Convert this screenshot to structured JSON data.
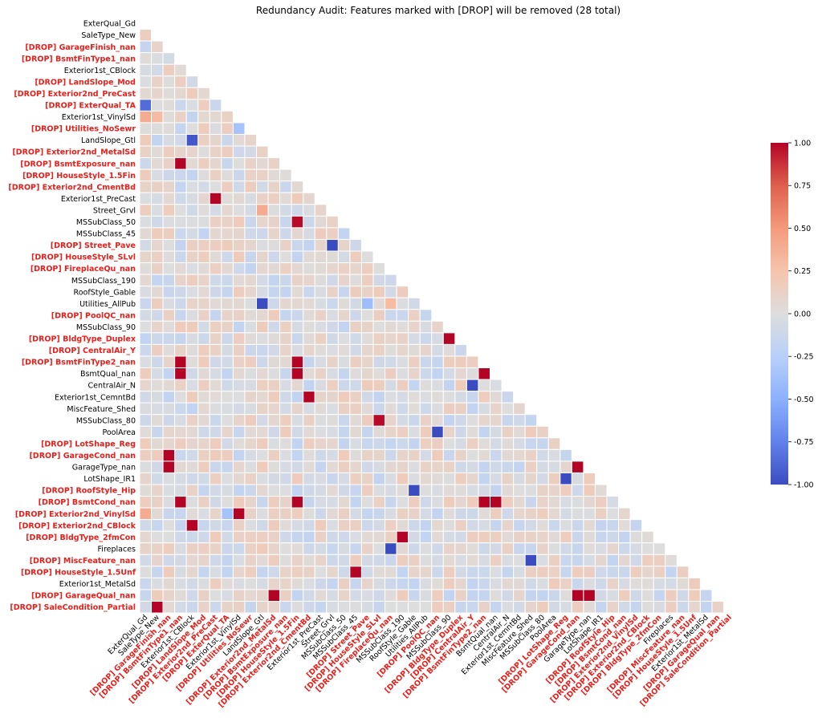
{
  "chart_data": {
    "type": "heatmap",
    "title": "Redundancy Audit: Features marked with [DROP] will be removed (28 total)",
    "drop_color": "#e8201c",
    "labels": [
      {
        "name": "ExterQual_Gd",
        "drop": false
      },
      {
        "name": "SaleType_New",
        "drop": false
      },
      {
        "name": "[DROP] GarageFinish_nan",
        "drop": true
      },
      {
        "name": "[DROP] BsmtFinType1_nan",
        "drop": true
      },
      {
        "name": "Exterior1st_CBlock",
        "drop": false
      },
      {
        "name": "[DROP] LandSlope_Mod",
        "drop": true
      },
      {
        "name": "[DROP] Exterior2nd_PreCast",
        "drop": true
      },
      {
        "name": "[DROP] ExterQual_TA",
        "drop": true
      },
      {
        "name": "Exterior1st_VinylSd",
        "drop": false
      },
      {
        "name": "[DROP] Utilities_NoSewr",
        "drop": true
      },
      {
        "name": "LandSlope_Gtl",
        "drop": false
      },
      {
        "name": "[DROP] Exterior2nd_MetalSd",
        "drop": true
      },
      {
        "name": "[DROP] BsmtExposure_nan",
        "drop": true
      },
      {
        "name": "[DROP] HouseStyle_1.5Fin",
        "drop": true
      },
      {
        "name": "[DROP] Exterior2nd_CmentBd",
        "drop": true
      },
      {
        "name": "Exterior1st_PreCast",
        "drop": false
      },
      {
        "name": "Street_Grvl",
        "drop": false
      },
      {
        "name": "MSSubClass_50",
        "drop": false
      },
      {
        "name": "MSSubClass_45",
        "drop": false
      },
      {
        "name": "[DROP] Street_Pave",
        "drop": true
      },
      {
        "name": "[DROP] HouseStyle_SLvl",
        "drop": true
      },
      {
        "name": "[DROP] FireplaceQu_nan",
        "drop": true
      },
      {
        "name": "MSSubClass_190",
        "drop": false
      },
      {
        "name": "RoofStyle_Gable",
        "drop": false
      },
      {
        "name": "Utilities_AllPub",
        "drop": false
      },
      {
        "name": "[DROP] PoolQC_nan",
        "drop": true
      },
      {
        "name": "MSSubClass_90",
        "drop": false
      },
      {
        "name": "[DROP] BldgType_Duplex",
        "drop": true
      },
      {
        "name": "[DROP] CentralAir_Y",
        "drop": true
      },
      {
        "name": "[DROP] BsmtFinType2_nan",
        "drop": true
      },
      {
        "name": "BsmtQual_nan",
        "drop": false
      },
      {
        "name": "CentralAir_N",
        "drop": false
      },
      {
        "name": "Exterior1st_CemntBd",
        "drop": false
      },
      {
        "name": "MiscFeature_Shed",
        "drop": false
      },
      {
        "name": "MSSubClass_80",
        "drop": false
      },
      {
        "name": "PoolArea",
        "drop": false
      },
      {
        "name": "[DROP] LotShape_Reg",
        "drop": true
      },
      {
        "name": "[DROP] GarageCond_nan",
        "drop": true
      },
      {
        "name": "GarageType_nan",
        "drop": false
      },
      {
        "name": "LotShape_IR1",
        "drop": false
      },
      {
        "name": "[DROP] RoofStyle_Hip",
        "drop": true
      },
      {
        "name": "[DROP] BsmtCond_nan",
        "drop": true
      },
      {
        "name": "[DROP] Exterior2nd_VinylSd",
        "drop": true
      },
      {
        "name": "[DROP] Exterior2nd_CBlock",
        "drop": true
      },
      {
        "name": "[DROP] BldgType_2fmCon",
        "drop": true
      },
      {
        "name": "Fireplaces",
        "drop": false
      },
      {
        "name": "[DROP] MiscFeature_nan",
        "drop": true
      },
      {
        "name": "[DROP] HouseStyle_1.5Unf",
        "drop": true
      },
      {
        "name": "Exterior1st_MetalSd",
        "drop": false
      },
      {
        "name": "[DROP] GarageQual_nan",
        "drop": true
      },
      {
        "name": "[DROP] SaleCondition_Partial",
        "drop": true
      }
    ],
    "strong_correlations": [
      [
        2,
        1,
        0.1
      ],
      [
        7,
        0,
        -0.85
      ],
      [
        8,
        0,
        0.4
      ],
      [
        8,
        1,
        0.3
      ],
      [
        9,
        8,
        -0.35
      ],
      [
        10,
        4,
        -0.95
      ],
      [
        12,
        3,
        1.0
      ],
      [
        15,
        6,
        1.0
      ],
      [
        16,
        10,
        0.4
      ],
      [
        17,
        13,
        0.98
      ],
      [
        19,
        16,
        -1.0
      ],
      [
        24,
        10,
        -1.0
      ],
      [
        24,
        19,
        -0.4
      ],
      [
        24,
        21,
        0.3
      ],
      [
        27,
        26,
        1.0
      ],
      [
        29,
        3,
        1.0
      ],
      [
        29,
        13,
        1.0
      ],
      [
        30,
        3,
        1.0
      ],
      [
        30,
        13,
        1.0
      ],
      [
        30,
        29,
        1.0
      ],
      [
        31,
        28,
        -1.0
      ],
      [
        32,
        14,
        1.0
      ],
      [
        34,
        20,
        0.98
      ],
      [
        35,
        25,
        -1.0
      ],
      [
        37,
        2,
        1.0
      ],
      [
        38,
        2,
        1.0
      ],
      [
        38,
        37,
        1.0
      ],
      [
        39,
        36,
        -1.0
      ],
      [
        40,
        23,
        -1.0
      ],
      [
        41,
        3,
        1.0
      ],
      [
        41,
        13,
        1.0
      ],
      [
        41,
        29,
        1.0
      ],
      [
        41,
        30,
        1.0
      ],
      [
        42,
        0,
        0.4
      ],
      [
        42,
        8,
        1.0
      ],
      [
        42,
        7,
        -0.35
      ],
      [
        43,
        4,
        1.0
      ],
      [
        44,
        22,
        1.0
      ],
      [
        45,
        21,
        -1.0
      ],
      [
        46,
        33,
        -1.0
      ],
      [
        47,
        18,
        1.0
      ],
      [
        49,
        11,
        1.0
      ],
      [
        49,
        37,
        1.0
      ],
      [
        49,
        38,
        1.0
      ],
      [
        50,
        1,
        1.0
      ]
    ],
    "colorbar": {
      "min": -1.0,
      "max": 1.0,
      "ticks": [
        "1.00",
        "0.75",
        "0.50",
        "0.25",
        "0.00",
        "-0.25",
        "-0.50",
        "-0.75",
        "-1.00"
      ],
      "colormap": "coolwarm"
    }
  }
}
